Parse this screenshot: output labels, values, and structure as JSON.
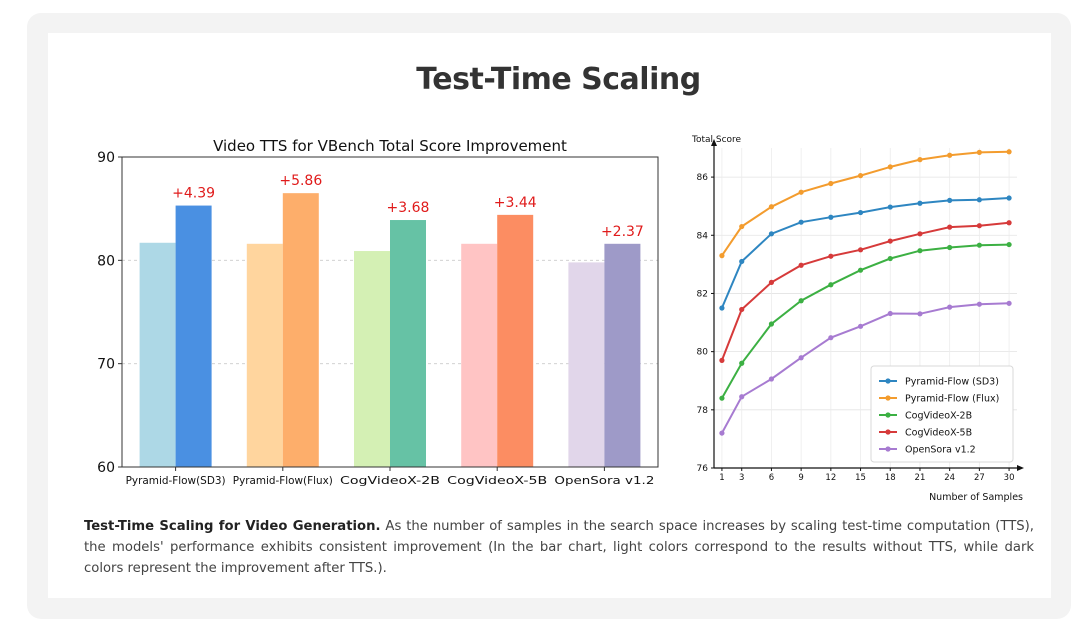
{
  "page": {
    "title": "Test-Time Scaling"
  },
  "caption": {
    "bold": "Test-Time Scaling for Video Generation.",
    "text": " As the number of samples in the search space increases by scaling test-time computation (TTS), the models' performance exhibits consistent improvement (In the bar chart, light colors correspond to the results without TTS, while dark colors represent the improvement after TTS.)."
  },
  "chart_data": [
    {
      "type": "bar",
      "title": "Video TTS for VBench Total Score Improvement",
      "categories": [
        "Pyramid-Flow(SD3)",
        "Pyramid-Flow(Flux)",
        "CogVideoX-2B",
        "CogVideoX-5B",
        "OpenSora v1.2"
      ],
      "series": [
        {
          "values": [
            81.7,
            81.6,
            80.9,
            81.6,
            79.8
          ]
        },
        {
          "values": [
            85.3,
            86.5,
            83.9,
            84.4,
            81.6
          ]
        }
      ],
      "delta_labels": [
        "+4.39",
        "+5.86",
        "+3.68",
        "+3.44",
        "+2.37"
      ],
      "light_colors": [
        "#add8e6",
        "#ffd59e",
        "#d4f0b4",
        "#ffc4c4",
        "#e1d6ea"
      ],
      "dark_colors": [
        "#4a90e2",
        "#fdae6b",
        "#66c2a5",
        "#fc8d62",
        "#9e9ac8"
      ],
      "label_color": "#e01b1b",
      "ylim": [
        60,
        90
      ],
      "yticks": [
        60,
        70,
        80,
        90
      ],
      "grid": true
    },
    {
      "type": "line",
      "ylabel": "Total Score",
      "xlabel": "Number of Samples",
      "x": [
        1,
        3,
        6,
        9,
        12,
        15,
        18,
        21,
        24,
        27,
        30
      ],
      "ylim": [
        76,
        87
      ],
      "yticks": [
        76,
        78,
        80,
        82,
        84,
        86
      ],
      "legend_position": "bottom-right",
      "grid": true,
      "series": [
        {
          "name": "Pyramid-Flow (SD3)",
          "color": "#2e86c1",
          "values": [
            81.5,
            83.1,
            84.05,
            84.45,
            84.62,
            84.78,
            84.97,
            85.1,
            85.2,
            85.22,
            85.28
          ]
        },
        {
          "name": "Pyramid-Flow (Flux)",
          "color": "#f39c2e",
          "values": [
            83.3,
            84.3,
            84.98,
            85.48,
            85.78,
            86.05,
            86.35,
            86.6,
            86.75,
            86.85,
            86.87
          ]
        },
        {
          "name": "CogVideoX-2B",
          "color": "#3cb043",
          "values": [
            78.4,
            79.6,
            80.95,
            81.75,
            82.3,
            82.8,
            83.2,
            83.47,
            83.58,
            83.66,
            83.68
          ]
        },
        {
          "name": "CogVideoX-5B",
          "color": "#d63a3a",
          "values": [
            79.7,
            81.45,
            82.38,
            82.97,
            83.28,
            83.5,
            83.8,
            84.05,
            84.28,
            84.33,
            84.43
          ]
        },
        {
          "name": "OpenSora v1.2",
          "color": "#a77bd1",
          "values": [
            77.2,
            78.45,
            79.06,
            79.79,
            80.48,
            80.87,
            81.31,
            81.3,
            81.53,
            81.63,
            81.66
          ]
        }
      ]
    }
  ]
}
